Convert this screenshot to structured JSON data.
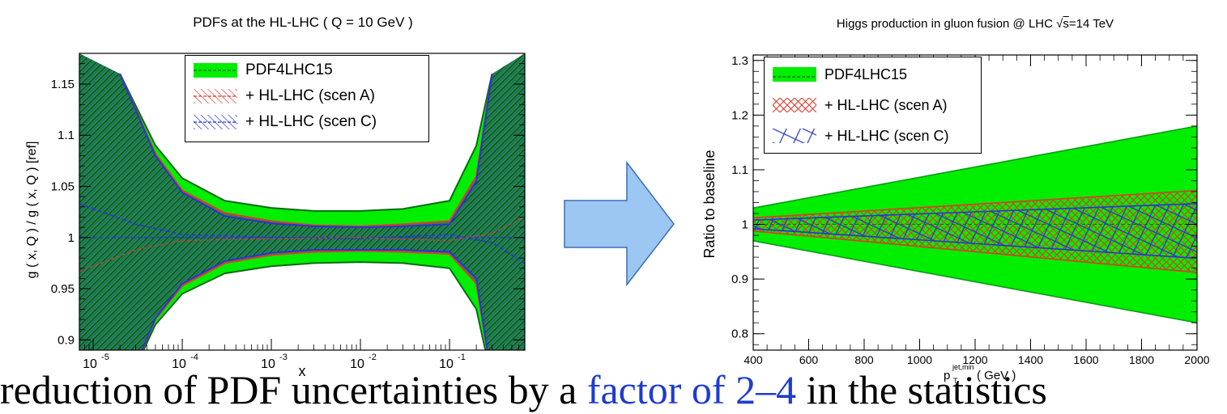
{
  "left_chart": {
    "title": "PDFs at the HL-LHC ( Q = 10 GeV )",
    "xlabel": "x",
    "ylabel": "g ( x, Q ) / g ( x, Q ) [ref]",
    "legend": [
      "PDF4LHC15",
      "+ HL-LHC (scen A)",
      "+ HL-LHC (scen C)"
    ],
    "xticks": [
      "10",
      "10",
      "10",
      "10",
      "10"
    ],
    "xtick_exps": [
      "-5",
      "-4",
      "-3",
      "-2",
      "-1"
    ],
    "yticks": [
      "0.9",
      "0.95",
      "1",
      "1.05",
      "1.1",
      "1.15"
    ]
  },
  "right_chart": {
    "title": "Higgs production in gluon fusion @ LHC √s=14 TeV",
    "xlabel": "( GeV )",
    "xlabel_var": "p",
    "xlabel_sub": "T",
    "xlabel_sup": "jet,min",
    "ylabel": "Ratio to baseline",
    "legend": [
      "PDF4LHC15",
      "+ HL-LHC (scen A)",
      "+ HL-LHC (scen C)"
    ],
    "xticks": [
      "400",
      "600",
      "800",
      "1000",
      "1200",
      "1400",
      "1600",
      "1800",
      "2000"
    ],
    "yticks": [
      "0.8",
      "0.9",
      "1",
      "1.1",
      "1.2",
      "1.3"
    ]
  },
  "colors": {
    "pdf4lhc15": "#00ee00",
    "scenA": "#e03a2a",
    "scenC": "#2a33d8",
    "arrow_fill": "#9cc7f2",
    "arrow_stroke": "#3a6fb5"
  },
  "arrow_icon": "right-arrow-icon",
  "chart_data": [
    {
      "type": "area",
      "title": "PDFs at the HL-LHC ( Q = 10 GeV )",
      "xlabel": "x",
      "ylabel": "g ( x, Q ) / g ( x, Q ) [ref]",
      "xscale": "log",
      "xlim": [
        7e-06,
        0.7
      ],
      "ylim": [
        0.89,
        1.18
      ],
      "legend_position": "top-center",
      "x": [
        2e-05,
        5e-05,
        0.0001,
        0.0003,
        0.001,
        0.003,
        0.01,
        0.03,
        0.1,
        0.2,
        0.3
      ],
      "series": [
        {
          "name": "PDF4LHC15",
          "upper": [
            1.16,
            1.09,
            1.058,
            1.036,
            1.029,
            1.026,
            1.026,
            1.028,
            1.036,
            1.09,
            1.16
          ],
          "lower": [
            0.84,
            0.915,
            0.945,
            0.965,
            0.972,
            0.975,
            0.976,
            0.975,
            0.97,
            0.93,
            0.86
          ]
        },
        {
          "name": "+ HL-LHC (scen A)",
          "upper": [
            1.16,
            1.082,
            1.046,
            1.024,
            1.016,
            1.012,
            1.011,
            1.013,
            1.016,
            1.06,
            1.16
          ],
          "lower": [
            0.84,
            0.92,
            0.953,
            0.975,
            0.983,
            0.986,
            0.987,
            0.986,
            0.984,
            0.955,
            0.86
          ]
        },
        {
          "name": "+ HL-LHC (scen C)",
          "upper": [
            1.16,
            1.08,
            1.044,
            1.021,
            1.014,
            1.011,
            1.01,
            1.011,
            1.013,
            1.055,
            1.16
          ],
          "lower": [
            0.84,
            0.921,
            0.955,
            0.977,
            0.985,
            0.988,
            0.988,
            0.988,
            0.986,
            0.96,
            0.86
          ]
        }
      ]
    },
    {
      "type": "area",
      "title": "Higgs production in gluon fusion @ LHC √s=14 TeV",
      "xlabel": "p_T^{jet,min} ( GeV )",
      "ylabel": "Ratio to baseline",
      "xlim": [
        400,
        2000
      ],
      "ylim": [
        0.77,
        1.31
      ],
      "legend_position": "top-left",
      "x": [
        400,
        2000
      ],
      "series": [
        {
          "name": "PDF4LHC15",
          "upper": [
            1.03,
            1.18
          ],
          "lower": [
            0.97,
            0.82
          ]
        },
        {
          "name": "+ HL-LHC (scen A)",
          "upper": [
            1.012,
            1.062
          ],
          "lower": [
            0.988,
            0.912
          ]
        },
        {
          "name": "+ HL-LHC (scen C)",
          "upper": [
            1.008,
            1.038
          ],
          "lower": [
            0.992,
            0.938
          ]
        }
      ]
    }
  ],
  "footer_text": {
    "part1": "reduction of PDF uncertainties by a",
    "part2": " factor of 2–4",
    "part3": " in the statistics"
  }
}
